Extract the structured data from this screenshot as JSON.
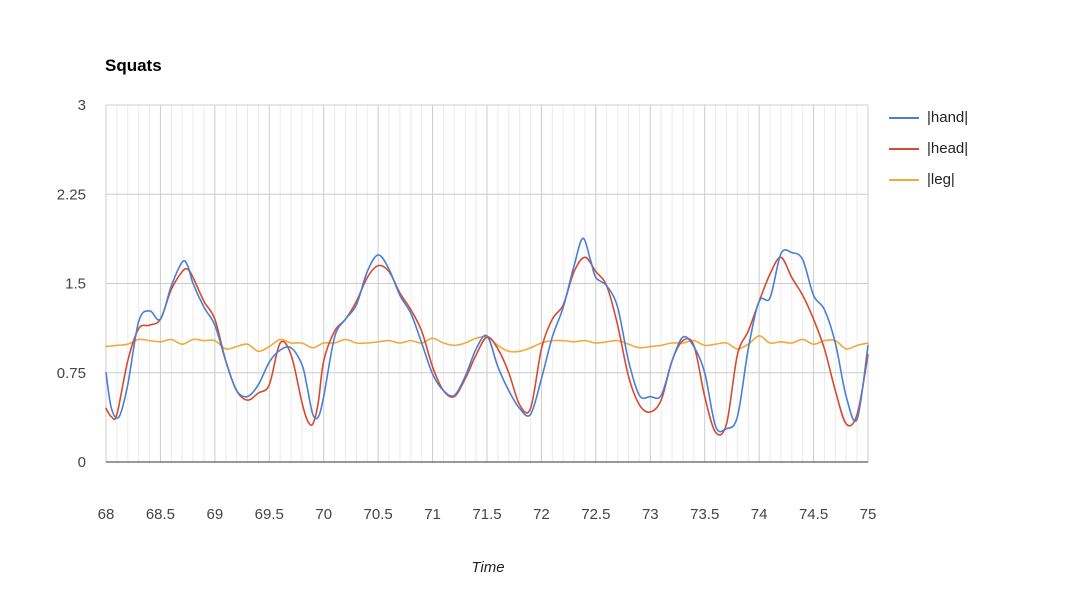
{
  "chart_data": {
    "type": "line",
    "title": "Squats",
    "xlabel": "Time",
    "ylabel": "",
    "xlim": [
      68,
      75
    ],
    "ylim": [
      0,
      3
    ],
    "x_ticks": [
      "68",
      "68.5",
      "69",
      "69.5",
      "70",
      "70.5",
      "71",
      "71.5",
      "72",
      "72.5",
      "73",
      "73.5",
      "74",
      "74.5",
      "75"
    ],
    "y_ticks": [
      "0",
      "0.75",
      "1.5",
      "2.25",
      "3"
    ],
    "legend_position": "right",
    "grid": true,
    "series": [
      {
        "name": "|hand|",
        "color": "#4a7fd6",
        "x": [
          68.0,
          68.05,
          68.12,
          68.2,
          68.3,
          68.4,
          68.5,
          68.6,
          68.7,
          68.75,
          68.8,
          68.9,
          69.0,
          69.1,
          69.2,
          69.3,
          69.4,
          69.5,
          69.6,
          69.7,
          69.8,
          69.85,
          69.9,
          69.95,
          70.0,
          70.1,
          70.2,
          70.3,
          70.4,
          70.5,
          70.6,
          70.7,
          70.8,
          70.9,
          71.0,
          71.1,
          71.2,
          71.3,
          71.4,
          71.5,
          71.6,
          71.7,
          71.8,
          71.9,
          72.0,
          72.1,
          72.2,
          72.3,
          72.38,
          72.45,
          72.5,
          72.6,
          72.7,
          72.8,
          72.9,
          73.0,
          73.1,
          73.2,
          73.3,
          73.4,
          73.5,
          73.6,
          73.7,
          73.8,
          73.9,
          74.0,
          74.1,
          74.2,
          74.3,
          74.4,
          74.5,
          74.6,
          74.7,
          74.8,
          74.9,
          75.0
        ],
        "values": [
          0.75,
          0.45,
          0.38,
          0.65,
          1.18,
          1.27,
          1.2,
          1.48,
          1.68,
          1.65,
          1.5,
          1.3,
          1.15,
          0.85,
          0.6,
          0.55,
          0.65,
          0.84,
          0.94,
          0.96,
          0.82,
          0.62,
          0.4,
          0.38,
          0.55,
          1.05,
          1.2,
          1.32,
          1.6,
          1.74,
          1.62,
          1.4,
          1.25,
          1.0,
          0.74,
          0.6,
          0.56,
          0.72,
          0.95,
          1.06,
          0.8,
          0.6,
          0.45,
          0.4,
          0.7,
          1.05,
          1.3,
          1.65,
          1.88,
          1.7,
          1.55,
          1.48,
          1.3,
          0.85,
          0.56,
          0.55,
          0.56,
          0.85,
          1.05,
          0.97,
          0.75,
          0.3,
          0.28,
          0.38,
          0.95,
          1.35,
          1.38,
          1.75,
          1.76,
          1.7,
          1.4,
          1.28,
          1.0,
          0.55,
          0.36,
          0.98
        ]
      },
      {
        "name": "|head|",
        "color": "#d84a2f",
        "x": [
          68.0,
          68.05,
          68.1,
          68.2,
          68.3,
          68.4,
          68.5,
          68.6,
          68.7,
          68.75,
          68.8,
          68.9,
          69.0,
          69.1,
          69.2,
          69.3,
          69.4,
          69.5,
          69.6,
          69.7,
          69.8,
          69.85,
          69.9,
          69.95,
          70.0,
          70.1,
          70.2,
          70.3,
          70.4,
          70.5,
          70.6,
          70.7,
          70.8,
          70.9,
          71.0,
          71.1,
          71.2,
          71.3,
          71.4,
          71.5,
          71.6,
          71.7,
          71.8,
          71.9,
          72.0,
          72.1,
          72.2,
          72.3,
          72.4,
          72.5,
          72.6,
          72.7,
          72.8,
          72.9,
          73.0,
          73.1,
          73.2,
          73.3,
          73.4,
          73.5,
          73.6,
          73.7,
          73.8,
          73.9,
          74.0,
          74.1,
          74.2,
          74.3,
          74.4,
          74.5,
          74.6,
          74.7,
          74.8,
          74.9,
          75.0
        ],
        "values": [
          0.45,
          0.38,
          0.4,
          0.85,
          1.12,
          1.15,
          1.2,
          1.45,
          1.6,
          1.62,
          1.55,
          1.35,
          1.2,
          0.85,
          0.6,
          0.52,
          0.58,
          0.65,
          1.0,
          0.9,
          0.5,
          0.35,
          0.32,
          0.5,
          0.85,
          1.1,
          1.2,
          1.35,
          1.55,
          1.65,
          1.6,
          1.42,
          1.28,
          1.1,
          0.8,
          0.6,
          0.55,
          0.7,
          0.9,
          1.05,
          0.95,
          0.75,
          0.48,
          0.45,
          0.95,
          1.2,
          1.32,
          1.6,
          1.72,
          1.6,
          1.48,
          1.15,
          0.72,
          0.48,
          0.42,
          0.52,
          0.85,
          1.02,
          0.98,
          0.55,
          0.25,
          0.32,
          0.9,
          1.1,
          1.35,
          1.58,
          1.72,
          1.55,
          1.4,
          1.2,
          0.95,
          0.6,
          0.32,
          0.4,
          0.9
        ]
      },
      {
        "name": "|leg|",
        "color": "#f2a93b",
        "x": [
          68.0,
          68.1,
          68.2,
          68.3,
          68.4,
          68.5,
          68.6,
          68.7,
          68.8,
          68.9,
          69.0,
          69.1,
          69.2,
          69.3,
          69.4,
          69.5,
          69.6,
          69.7,
          69.8,
          69.9,
          70.0,
          70.1,
          70.2,
          70.3,
          70.4,
          70.5,
          70.6,
          70.7,
          70.8,
          70.9,
          71.0,
          71.1,
          71.2,
          71.3,
          71.4,
          71.5,
          71.6,
          71.7,
          71.8,
          71.9,
          72.0,
          72.1,
          72.2,
          72.3,
          72.4,
          72.5,
          72.6,
          72.7,
          72.8,
          72.9,
          73.0,
          73.1,
          73.2,
          73.3,
          73.4,
          73.5,
          73.6,
          73.7,
          73.8,
          73.9,
          74.0,
          74.1,
          74.2,
          74.3,
          74.4,
          74.5,
          74.6,
          74.7,
          74.8,
          74.9,
          75.0
        ],
        "values": [
          0.97,
          0.98,
          0.99,
          1.03,
          1.02,
          1.01,
          1.03,
          0.99,
          1.03,
          1.02,
          1.02,
          0.95,
          0.97,
          0.99,
          0.93,
          0.97,
          1.03,
          1.0,
          1.0,
          0.96,
          1.0,
          1.0,
          1.03,
          1.0,
          1.0,
          1.01,
          1.02,
          1.0,
          1.02,
          1.0,
          1.04,
          1.0,
          0.98,
          1.0,
          1.04,
          1.05,
          0.98,
          0.93,
          0.93,
          0.96,
          1.0,
          1.02,
          1.02,
          1.01,
          1.02,
          1.0,
          1.01,
          1.02,
          0.99,
          0.96,
          0.97,
          0.98,
          1.0,
          1.0,
          1.02,
          0.98,
          0.99,
          1.0,
          0.95,
          0.99,
          1.06,
          1.0,
          1.01,
          1.0,
          1.03,
          0.99,
          1.02,
          1.02,
          0.95,
          0.98,
          1.0
        ]
      }
    ]
  }
}
